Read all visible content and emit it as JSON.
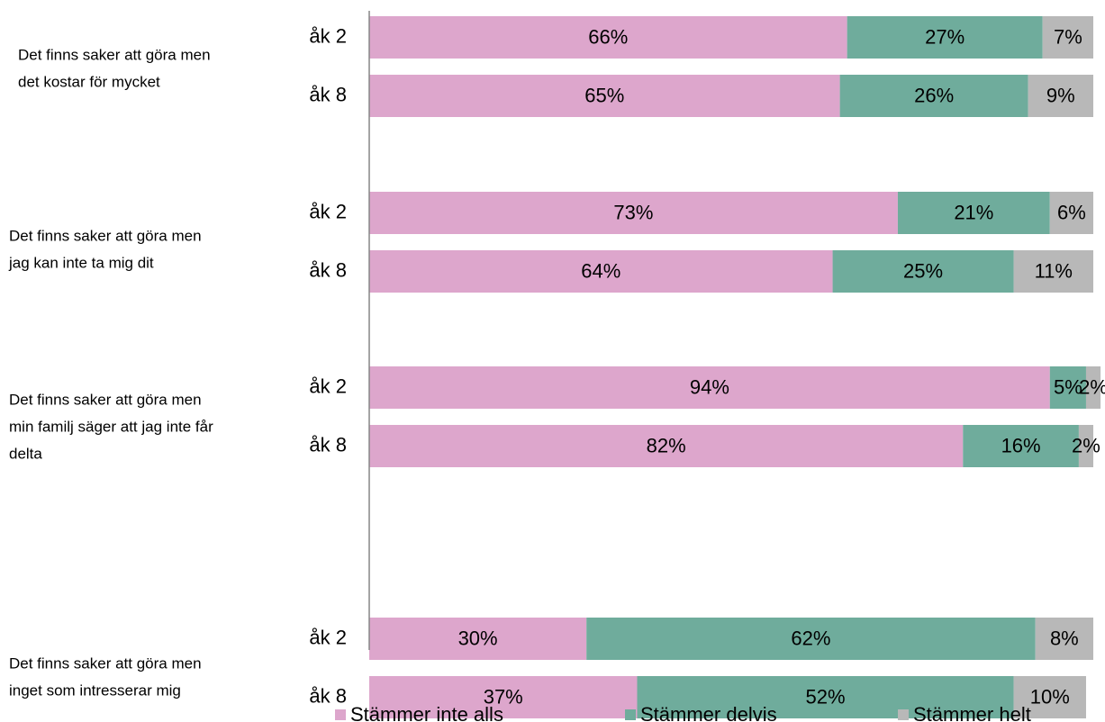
{
  "chart_data": {
    "type": "bar",
    "orientation": "horizontal",
    "stacked": true,
    "percent_stacked": true,
    "title": "",
    "xlabel": "",
    "ylabel": "",
    "xlim": [
      0,
      100
    ],
    "grid": false,
    "legend_position": "bottom",
    "groups": [
      {
        "label": [
          "Det finns saker att göra men",
          "det kostar för mycket"
        ],
        "rows": [
          {
            "label": "åk 2",
            "values": [
              66,
              27,
              7
            ]
          },
          {
            "label": "åk 8",
            "values": [
              65,
              26,
              9
            ]
          }
        ]
      },
      {
        "label": [
          "Det finns saker att göra men",
          "jag kan inte ta mig dit"
        ],
        "rows": [
          {
            "label": "åk 2",
            "values": [
              73,
              21,
              6
            ]
          },
          {
            "label": "åk 8",
            "values": [
              64,
              25,
              11
            ]
          }
        ]
      },
      {
        "label": [
          "Det finns saker att göra men",
          "min familj säger att jag inte får",
          "delta"
        ],
        "rows": [
          {
            "label": "åk 2",
            "values": [
              94,
              5,
              2
            ]
          },
          {
            "label": "åk 8",
            "values": [
              82,
              16,
              2
            ]
          }
        ]
      },
      {
        "label": [
          "Det finns saker att göra men",
          "inget som intresserar mig"
        ],
        "rows": [
          {
            "label": "åk 2",
            "values": [
              30,
              62,
              8
            ]
          },
          {
            "label": "åk 8",
            "values": [
              37,
              52,
              10
            ]
          }
        ]
      }
    ],
    "series": [
      {
        "name": "Stämmer inte alls",
        "color": "#dda6cc"
      },
      {
        "name": "Stämmer delvis",
        "color": "#6fac9c"
      },
      {
        "name": "Stämmer helt",
        "color": "#b8b8b8"
      }
    ],
    "axis_color": "#868686"
  }
}
